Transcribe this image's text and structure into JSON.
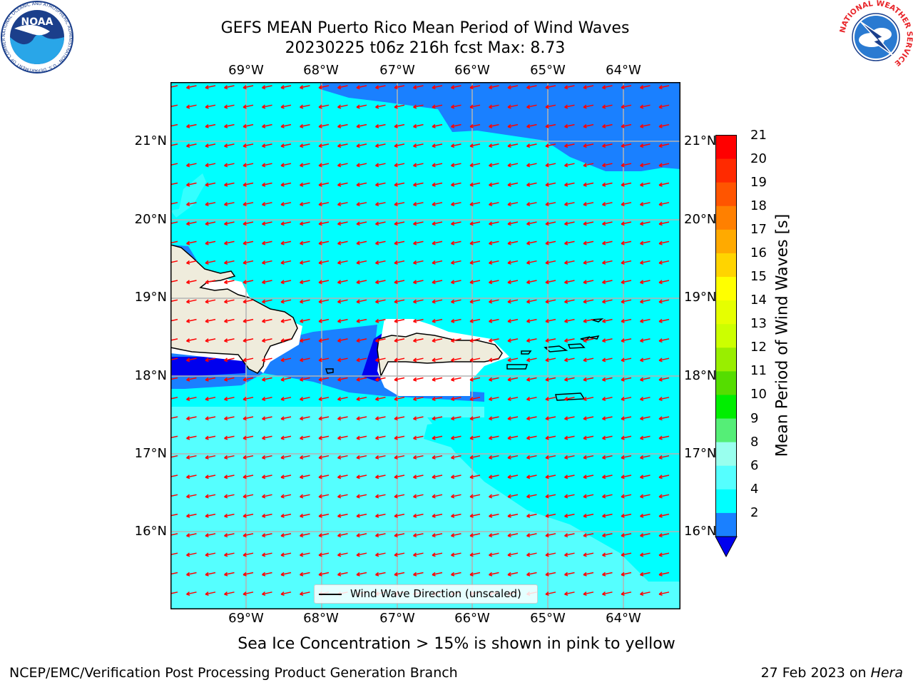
{
  "title_line1": "GEFS MEAN Puerto Rico Mean Period of Wind Waves",
  "title_line2": "20230225 t06z 216h fcst   Max: 8.73",
  "x_ticks": [
    "69°W",
    "68°W",
    "67°W",
    "66°W",
    "65°W",
    "64°W"
  ],
  "y_ticks": [
    "21°N",
    "20°N",
    "19°N",
    "18°N",
    "17°N",
    "16°N"
  ],
  "legend_label": "Wind Wave Direction (unscaled)",
  "colorbar": {
    "title": "Mean Period of Wind Waves [s]",
    "labels": [
      "21",
      "20",
      "19",
      "18",
      "17",
      "16",
      "15",
      "14",
      "13",
      "12",
      "11",
      "10",
      "9",
      "8",
      "6",
      "4",
      "2"
    ],
    "colors": [
      "#ff0000",
      "#ff2a00",
      "#ff5500",
      "#ff8000",
      "#ffaa00",
      "#ffd400",
      "#ffff00",
      "#e6ff00",
      "#ccff00",
      "#99ee00",
      "#55dd00",
      "#00ee00",
      "#55ee77",
      "#99ffee",
      "#55ffff",
      "#00ffff",
      "#1a80ff"
    ],
    "under_color": "#0000ee"
  },
  "subtitle": "Sea Ice Concentration > 15% is shown in pink to yellow",
  "footer_left": "NCEP/EMC/Verification Post Processing Product Generation Branch",
  "footer_date": "27 Feb 2023 on ",
  "footer_host": "Hera",
  "logo_left_text": "NOAA",
  "logo_left_ring": "NATIONAL OCEANIC AND ATMOSPHERIC ADMINISTRATION · U.S. DEPARTMENT OF COMMERCE",
  "logo_right_ring": "NATIONAL WEATHER SERVICE",
  "colors": {
    "cyan": "#00ffff",
    "light_cyan": "#55ffff",
    "blue": "#1a80ff",
    "dark_blue": "#0000ee",
    "land": "#efecdc",
    "arrow": "#ff0000"
  }
}
